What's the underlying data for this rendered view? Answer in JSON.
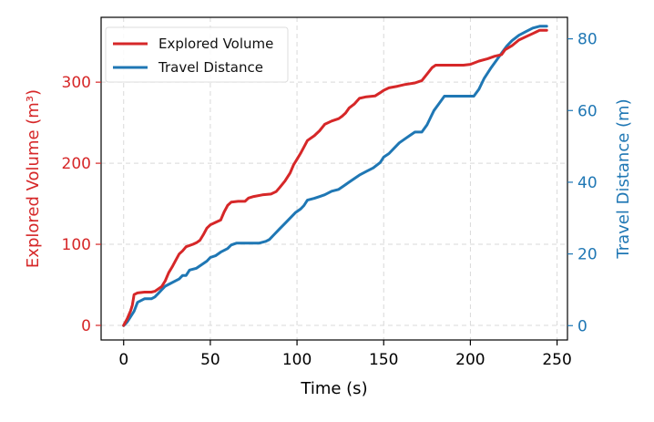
{
  "chart_data": {
    "type": "line",
    "title": "",
    "xlabel": "Time (s)",
    "ylabel_left": "Explored Volume (m³)",
    "ylabel_right": "Travel Distance (m)",
    "xlim": [
      -13,
      256
    ],
    "ylim_left": [
      -18,
      380
    ],
    "ylim_right": [
      -4,
      86
    ],
    "x_ticks": [
      0,
      50,
      100,
      150,
      200,
      250
    ],
    "y_ticks_left": [
      0,
      100,
      200,
      300
    ],
    "y_ticks_right": [
      0,
      20,
      40,
      60,
      80
    ],
    "grid": true,
    "legend_position": "top-left",
    "colors": {
      "explored": "#d62728",
      "travel": "#1f77b4"
    },
    "series": [
      {
        "name": "Explored Volume",
        "axis": "left",
        "points": [
          [
            0,
            0
          ],
          [
            2,
            8
          ],
          [
            4,
            18
          ],
          [
            5,
            25
          ],
          [
            6,
            38
          ],
          [
            8,
            40
          ],
          [
            12,
            41
          ],
          [
            16,
            41
          ],
          [
            18,
            42
          ],
          [
            20,
            45
          ],
          [
            22,
            48
          ],
          [
            24,
            55
          ],
          [
            26,
            65
          ],
          [
            28,
            72
          ],
          [
            30,
            80
          ],
          [
            32,
            88
          ],
          [
            34,
            92
          ],
          [
            36,
            97
          ],
          [
            40,
            100
          ],
          [
            42,
            102
          ],
          [
            44,
            105
          ],
          [
            46,
            112
          ],
          [
            48,
            120
          ],
          [
            50,
            124
          ],
          [
            53,
            127
          ],
          [
            56,
            130
          ],
          [
            58,
            140
          ],
          [
            60,
            148
          ],
          [
            62,
            152
          ],
          [
            66,
            153
          ],
          [
            70,
            153
          ],
          [
            72,
            157
          ],
          [
            75,
            159
          ],
          [
            80,
            161
          ],
          [
            85,
            162
          ],
          [
            88,
            165
          ],
          [
            90,
            170
          ],
          [
            93,
            178
          ],
          [
            96,
            188
          ],
          [
            98,
            198
          ],
          [
            100,
            205
          ],
          [
            102,
            212
          ],
          [
            104,
            220
          ],
          [
            106,
            228
          ],
          [
            110,
            234
          ],
          [
            113,
            240
          ],
          [
            116,
            248
          ],
          [
            120,
            252
          ],
          [
            124,
            255
          ],
          [
            126,
            258
          ],
          [
            128,
            262
          ],
          [
            130,
            268
          ],
          [
            133,
            273
          ],
          [
            136,
            280
          ],
          [
            140,
            282
          ],
          [
            145,
            283
          ],
          [
            148,
            287
          ],
          [
            150,
            290
          ],
          [
            153,
            293
          ],
          [
            158,
            295
          ],
          [
            162,
            297
          ],
          [
            168,
            299
          ],
          [
            172,
            302
          ],
          [
            175,
            310
          ],
          [
            178,
            318
          ],
          [
            180,
            321
          ],
          [
            185,
            321
          ],
          [
            190,
            321
          ],
          [
            196,
            321
          ],
          [
            200,
            322
          ],
          [
            205,
            326
          ],
          [
            210,
            329
          ],
          [
            214,
            332
          ],
          [
            218,
            334
          ],
          [
            220,
            340
          ],
          [
            224,
            345
          ],
          [
            228,
            352
          ],
          [
            232,
            356
          ],
          [
            236,
            360
          ],
          [
            238,
            362
          ],
          [
            240,
            364
          ],
          [
            244,
            364
          ]
        ]
      },
      {
        "name": "Travel Distance",
        "axis": "right",
        "points": [
          [
            0,
            0
          ],
          [
            2,
            1
          ],
          [
            4,
            2.5
          ],
          [
            6,
            4
          ],
          [
            8,
            6.5
          ],
          [
            12,
            7.5
          ],
          [
            16,
            7.5
          ],
          [
            18,
            8
          ],
          [
            20,
            9
          ],
          [
            22,
            10
          ],
          [
            24,
            11
          ],
          [
            26,
            11.5
          ],
          [
            30,
            12.5
          ],
          [
            32,
            13
          ],
          [
            34,
            14
          ],
          [
            36,
            14
          ],
          [
            38,
            15.5
          ],
          [
            42,
            16
          ],
          [
            45,
            17
          ],
          [
            48,
            18
          ],
          [
            50,
            19
          ],
          [
            53,
            19.5
          ],
          [
            56,
            20.5
          ],
          [
            60,
            21.5
          ],
          [
            62,
            22.5
          ],
          [
            65,
            23
          ],
          [
            70,
            23
          ],
          [
            74,
            23
          ],
          [
            78,
            23
          ],
          [
            82,
            23.5
          ],
          [
            84,
            24
          ],
          [
            87,
            25.5
          ],
          [
            90,
            27
          ],
          [
            93,
            28.5
          ],
          [
            96,
            30
          ],
          [
            99,
            31.5
          ],
          [
            102,
            32.5
          ],
          [
            104,
            33.5
          ],
          [
            106,
            35
          ],
          [
            110,
            35.5
          ],
          [
            113,
            36
          ],
          [
            116,
            36.5
          ],
          [
            120,
            37.5
          ],
          [
            124,
            38
          ],
          [
            127,
            39
          ],
          [
            130,
            40
          ],
          [
            133,
            41
          ],
          [
            136,
            42
          ],
          [
            140,
            43
          ],
          [
            144,
            44
          ],
          [
            148,
            45.5
          ],
          [
            150,
            47
          ],
          [
            153,
            48
          ],
          [
            156,
            49.5
          ],
          [
            159,
            51
          ],
          [
            162,
            52
          ],
          [
            165,
            53
          ],
          [
            168,
            54
          ],
          [
            172,
            54
          ],
          [
            175,
            56
          ],
          [
            177,
            58
          ],
          [
            179,
            60
          ],
          [
            182,
            62
          ],
          [
            185,
            64
          ],
          [
            188,
            64
          ],
          [
            194,
            64
          ],
          [
            198,
            64
          ],
          [
            202,
            64
          ],
          [
            205,
            66
          ],
          [
            208,
            69
          ],
          [
            212,
            72
          ],
          [
            215,
            74
          ],
          [
            218,
            76
          ],
          [
            221,
            78
          ],
          [
            224,
            79.5
          ],
          [
            228,
            81
          ],
          [
            232,
            82
          ],
          [
            236,
            83
          ],
          [
            240,
            83.5
          ],
          [
            244,
            83.5
          ]
        ]
      }
    ]
  }
}
